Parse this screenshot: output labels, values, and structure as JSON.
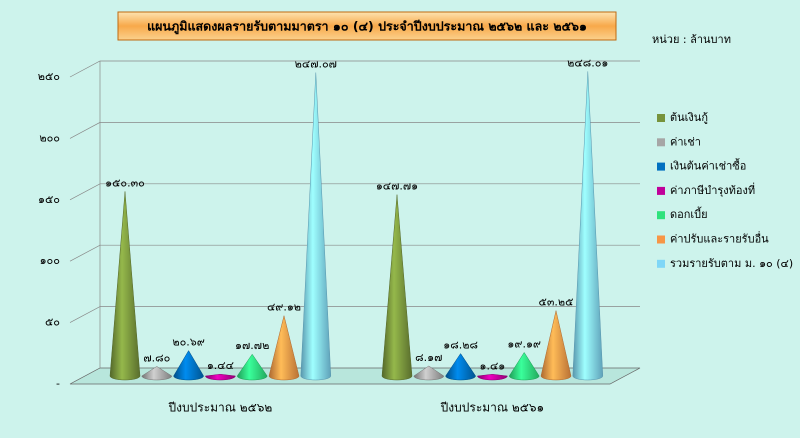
{
  "chart_data": {
    "type": "cone3d",
    "title": "แผนภูมิแสดงผลรายรับตามมาตรา ๑๐ (๔) ประจำปีงบประมาณ ๒๕๖๒ และ ๒๕๖๑",
    "unit": "หน่วย : ล้านบาท",
    "categories": [
      "ปีงบประมาณ ๒๕๖๒",
      "ปีงบประมาณ ๒๕๖๑"
    ],
    "series": [
      {
        "name": "ต้นเงินกู้",
        "color": "#77933c",
        "values": [
          150.3,
          147.71
        ],
        "value_labels": [
          "๑๕๐.๓๐",
          "๑๔๗.๗๑"
        ]
      },
      {
        "name": "ค่าเช่า",
        "color": "#a6a6a6",
        "values": [
          7.8,
          8.17
        ],
        "value_labels": [
          "๗.๘๐",
          "๘.๑๗"
        ]
      },
      {
        "name": "เงินต้นค่าเช่าซื้อ",
        "color": "#0070c0",
        "values": [
          20.69,
          18.28
        ],
        "value_labels": [
          "๒๐.๖๙",
          "๑๘.๒๘"
        ]
      },
      {
        "name": "ค่าภาษีบำรุงท้องที่",
        "color": "#c0009a",
        "values": [
          1.44,
          1.41
        ],
        "value_labels": [
          "๑.๔๔",
          "๑.๔๑"
        ]
      },
      {
        "name": "ดอกเบี้ย",
        "color": "#2ee27c",
        "values": [
          17.72,
          19.19
        ],
        "value_labels": [
          "๑๗.๗๒",
          "๑๙.๑๙"
        ]
      },
      {
        "name": "ค่าปรับและรายรับอื่น",
        "color": "#f79646",
        "values": [
          49.12,
          53.25
        ],
        "value_labels": [
          "๔๙.๑๒",
          "๕๓.๒๕"
        ]
      },
      {
        "name": "รวมรายรับตาม ม. ๑๐ (๔)",
        "color": "#7fd6f7",
        "values": [
          247.07,
          248.01
        ],
        "value_labels": [
          "๒๔๗.๐๗",
          "๒๔๘.๐๑"
        ]
      }
    ],
    "ylim": [
      0,
      250
    ],
    "yticks": [
      {
        "value": 0,
        "label": "-"
      },
      {
        "value": 50,
        "label": "๕๐"
      },
      {
        "value": 100,
        "label": "๑๐๐"
      },
      {
        "value": 150,
        "label": "๑๕๐"
      },
      {
        "value": 200,
        "label": "๒๐๐"
      },
      {
        "value": 250,
        "label": "๒๕๐"
      }
    ],
    "grid": true
  }
}
